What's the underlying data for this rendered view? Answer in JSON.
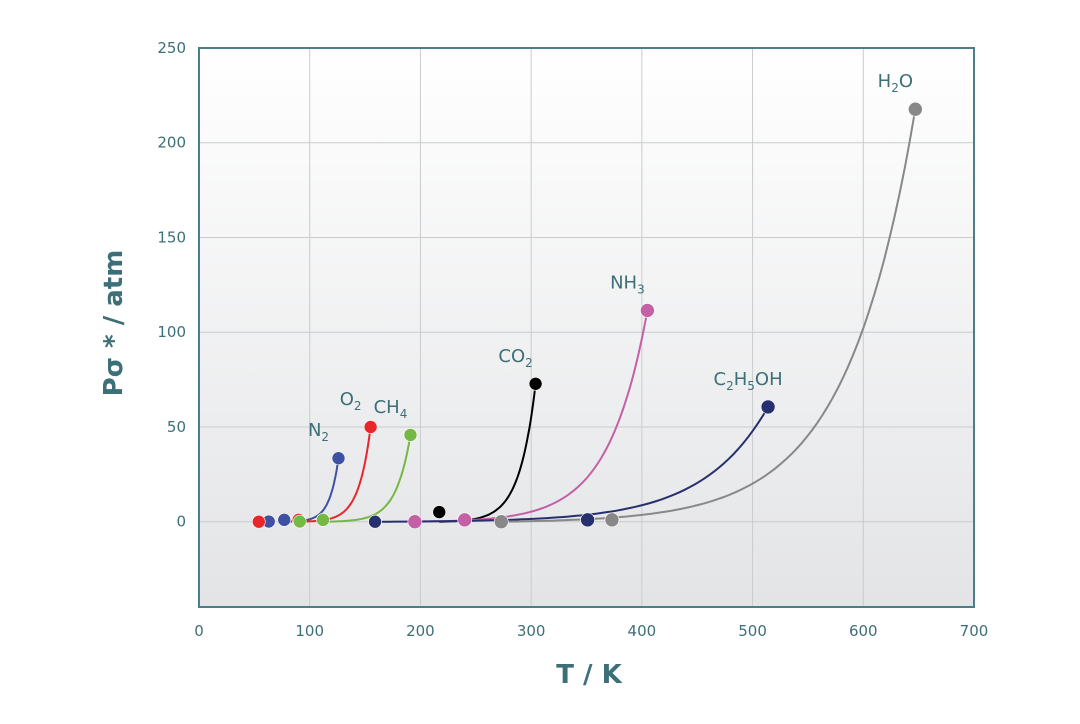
{
  "chart_data": {
    "type": "scatter",
    "xlabel": "T / K",
    "ylabel": "Pσ * / atm",
    "xlim": [
      0,
      700
    ],
    "ylim": [
      -45,
      250
    ],
    "x_ticks": [
      0,
      100,
      200,
      300,
      400,
      500,
      600,
      700
    ],
    "y_ticks": [
      0,
      50,
      100,
      150,
      200,
      250
    ],
    "grid": true,
    "legend": "none",
    "series": [
      {
        "name": "N₂",
        "color": "#3f51a3",
        "points": [
          {
            "x": 63,
            "y": 0.1
          },
          {
            "x": 77,
            "y": 1
          },
          {
            "x": 126,
            "y": 33.5
          }
        ],
        "curve_from": 77
      },
      {
        "name": "O₂",
        "color": "#e8262c",
        "points": [
          {
            "x": 54,
            "y": 0
          },
          {
            "x": 90,
            "y": 1
          },
          {
            "x": 155,
            "y": 50
          }
        ],
        "curve_from": 90
      },
      {
        "name": "CH₄",
        "color": "#75b843",
        "points": [
          {
            "x": 91,
            "y": 0.1
          },
          {
            "x": 112,
            "y": 1
          },
          {
            "x": 191,
            "y": 45.8
          }
        ],
        "curve_from": 112
      },
      {
        "name": "CO₂",
        "color": "#000000",
        "points": [
          {
            "x": 217,
            "y": 5.1
          },
          {
            "x": 304,
            "y": 72.8
          }
        ],
        "curve_from": 217
      },
      {
        "name": "NH₃",
        "color": "#c460a6",
        "points": [
          {
            "x": 159,
            "y": 0
          },
          {
            "x": 195,
            "y": 0
          },
          {
            "x": 240,
            "y": 1
          },
          {
            "x": 405,
            "y": 111.5
          }
        ],
        "curve_from": 195
      },
      {
        "name": "C₂H₅OH",
        "color": "#27306e",
        "points": [
          {
            "x": 159,
            "y": 0
          },
          {
            "x": 351,
            "y": 1
          },
          {
            "x": 514,
            "y": 60.6
          }
        ],
        "curve_from": 159
      },
      {
        "name": "H₂O",
        "color": "#888888",
        "points": [
          {
            "x": 273,
            "y": 0
          },
          {
            "x": 373,
            "y": 1
          },
          {
            "x": 647,
            "y": 217.7
          }
        ],
        "curve_from": 273
      }
    ]
  }
}
